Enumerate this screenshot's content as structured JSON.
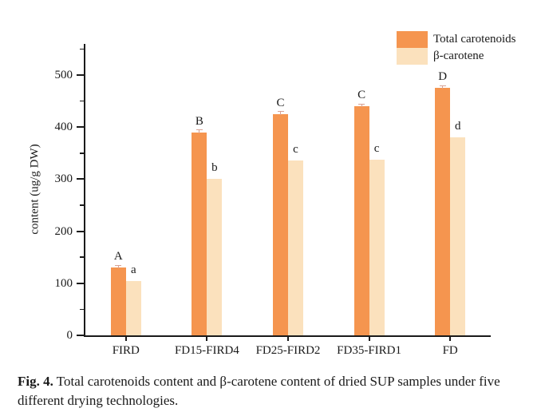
{
  "figure": {
    "caption_label": "Fig. 4.",
    "caption_text": " Total carotenoids content and β-carotene content of dried SUP samples under five different drying technologies."
  },
  "chart_data": {
    "type": "bar",
    "categories": [
      "FIRD",
      "FD15-FIRD4",
      "FD25-FIRD2",
      "FD35-FIRD1",
      "FD"
    ],
    "series": [
      {
        "name": "Total carotenoids",
        "color": "#F5954F",
        "values": [
          130,
          390,
          425,
          440,
          475
        ],
        "sig_labels": [
          "A",
          "B",
          "C",
          "C",
          "D"
        ]
      },
      {
        "name": "β-carotene",
        "color": "#FBE1BD",
        "values": [
          105,
          300,
          336,
          338,
          380
        ],
        "sig_labels": [
          "a",
          "b",
          "c",
          "c",
          "d"
        ]
      }
    ],
    "title": "",
    "xlabel": "",
    "ylabel": "content (ug/g DW)",
    "ylim": [
      0,
      560
    ],
    "yticks": [
      0,
      100,
      200,
      300,
      400,
      500
    ],
    "minor_tick_step": 50,
    "grid": false,
    "legend_position": "top-right",
    "error_bar_halfwidth": 4,
    "axis_color": "#1a1a1a"
  }
}
